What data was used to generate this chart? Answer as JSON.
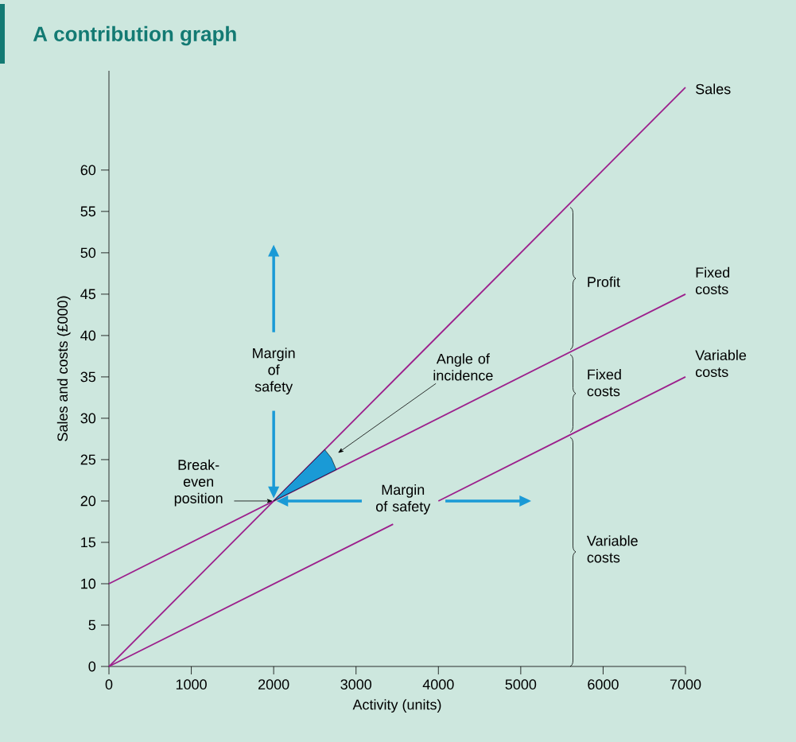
{
  "chart_data": {
    "type": "line",
    "title": "A contribution graph",
    "xlabel": "Activity (units)",
    "ylabel": "Sales and costs (£000)",
    "xlim": [
      0,
      7000
    ],
    "ylim": [
      0,
      72
    ],
    "xticks": [
      0,
      1000,
      2000,
      3000,
      4000,
      5000,
      6000,
      7000
    ],
    "yticks": [
      0,
      5,
      10,
      15,
      20,
      25,
      30,
      35,
      40,
      45,
      50,
      55,
      60
    ],
    "marker": "none",
    "series": [
      {
        "name": "Sales",
        "color": "#9c1f8c",
        "x": [
          0,
          7000
        ],
        "values": [
          0,
          70
        ]
      },
      {
        "name": "Fixed costs",
        "color": "#9c1f8c",
        "x": [
          0,
          7000
        ],
        "values": [
          10,
          45
        ]
      },
      {
        "name": "Variable costs",
        "color": "#9c1f8c",
        "x": [
          0,
          3450,
          3700,
          4000,
          7000
        ],
        "values": [
          0,
          17.2,
          null,
          20,
          35
        ]
      }
    ],
    "annotations": [
      "Margin of safety",
      "Margin of safety",
      "Angle of incidence",
      {
        "text": "Break-even position",
        "x": 2000,
        "y": 20
      },
      "Profit",
      "Fixed costs",
      "Variable costs"
    ]
  }
}
